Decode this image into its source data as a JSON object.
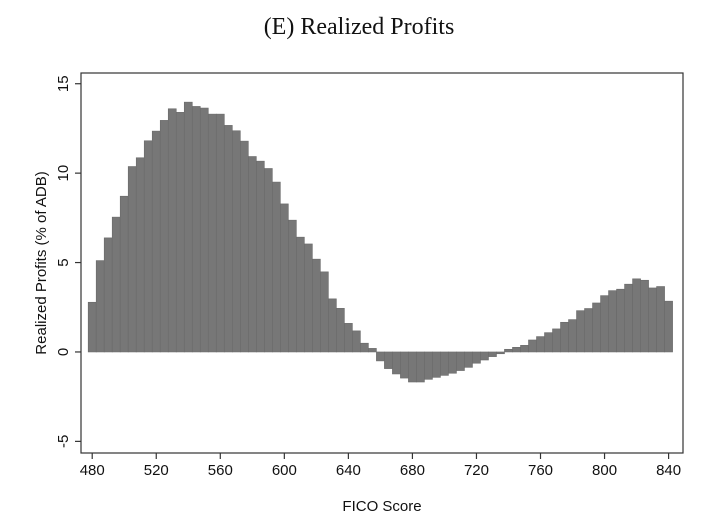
{
  "chart_data": {
    "type": "bar",
    "title": "(E) Realized Profits",
    "xlabel": "FICO Score",
    "ylabel": "Realized Profits (% of ADB)",
    "xlim": [
      473,
      849
    ],
    "ylim": [
      -5.65,
      15.6
    ],
    "xticks": [
      480,
      520,
      560,
      600,
      640,
      680,
      720,
      760,
      800,
      840
    ],
    "yticks": [
      -5,
      0,
      5,
      10,
      15
    ],
    "bin_width": 5,
    "bar_color": "#777777",
    "grid": false,
    "x": [
      480,
      485,
      490,
      495,
      500,
      505,
      510,
      515,
      520,
      525,
      530,
      535,
      540,
      545,
      550,
      555,
      560,
      565,
      570,
      575,
      580,
      585,
      590,
      595,
      600,
      605,
      610,
      615,
      620,
      625,
      630,
      635,
      640,
      645,
      650,
      655,
      660,
      665,
      670,
      675,
      680,
      685,
      690,
      695,
      700,
      705,
      710,
      715,
      720,
      725,
      730,
      735,
      740,
      745,
      750,
      755,
      760,
      765,
      770,
      775,
      780,
      785,
      790,
      795,
      800,
      805,
      810,
      815,
      820,
      825,
      830,
      835,
      840
    ],
    "values": [
      2.78,
      5.11,
      6.38,
      7.54,
      8.71,
      10.37,
      10.86,
      11.81,
      12.35,
      12.95,
      13.6,
      13.4,
      13.97,
      13.73,
      13.64,
      13.3,
      13.3,
      12.67,
      12.37,
      11.79,
      10.93,
      10.67,
      10.26,
      9.5,
      8.28,
      7.37,
      6.42,
      6.04,
      5.19,
      4.48,
      2.97,
      2.44,
      1.6,
      1.18,
      0.49,
      0.2,
      -0.5,
      -0.93,
      -1.23,
      -1.46,
      -1.68,
      -1.68,
      -1.53,
      -1.42,
      -1.31,
      -1.19,
      -1.04,
      -0.86,
      -0.63,
      -0.45,
      -0.26,
      -0.1,
      0.15,
      0.26,
      0.37,
      0.67,
      0.86,
      1.08,
      1.29,
      1.66,
      1.81,
      2.31,
      2.43,
      2.74,
      3.15,
      3.43,
      3.51,
      3.79,
      4.09,
      4.01,
      3.58,
      3.66,
      2.84
    ]
  }
}
